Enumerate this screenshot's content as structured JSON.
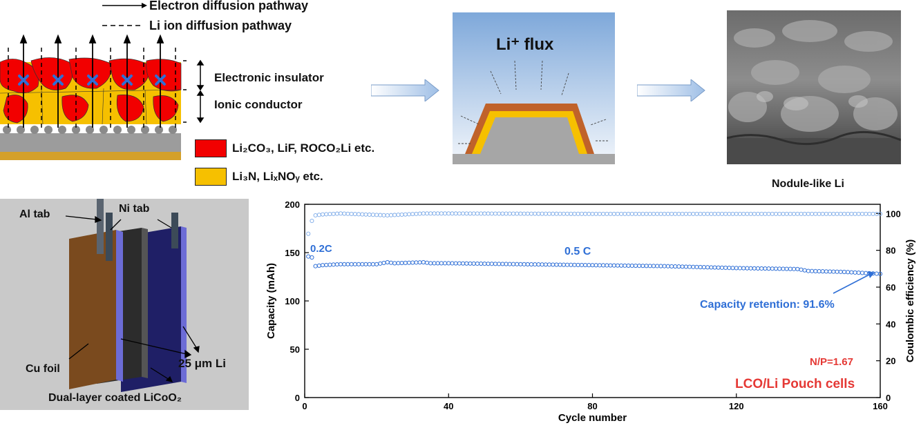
{
  "legend": {
    "electron_pathway": "Electron diffusion pathway",
    "li_ion_pathway": "Li ion diffusion pathway",
    "electronic_insulator": "Electronic insulator",
    "ionic_conductor": "Ionic conductor",
    "red_compounds": "Li₂CO₃, LiF, ROCO₂Li etc.",
    "yellow_compounds": "Li₃N, LiₓNOᵧ etc.",
    "red_color": "#f20000",
    "yellow_color": "#f6c000"
  },
  "flux_panel": {
    "label": "Li⁺ flux"
  },
  "sem_panel": {
    "caption": "Nodule-like Li"
  },
  "pouch_cell": {
    "al_tab": "Al tab",
    "ni_tab": "Ni tab",
    "cu_foil": "Cu foil",
    "li_thickness": "25 μm Li",
    "cathode": "Dual-layer coated LiCoO₂"
  },
  "chart_data": {
    "type": "scatter",
    "xlabel": "Cycle number",
    "ylabel_left": "Capacity (mAh)",
    "ylabel_right": "Coulombic efficiency (%)",
    "xlim": [
      0,
      160
    ],
    "ylim_left": [
      0,
      200
    ],
    "ylim_right": [
      0,
      105
    ],
    "xticks": [
      "0",
      "40",
      "80",
      "120",
      "160"
    ],
    "yticks_left": [
      "0",
      "50",
      "100",
      "150",
      "200"
    ],
    "yticks_right": [
      "0",
      "20",
      "40",
      "60",
      "80",
      "100"
    ],
    "annotations": {
      "rate_initial": "0.2C",
      "rate_main": "0.5 C",
      "retention": "Capacity retention: 91.6%",
      "np_ratio": "N/P=1.67",
      "cell_type": "LCO/Li Pouch cells"
    },
    "series": [
      {
        "axis": "left",
        "x": [
          1,
          2,
          3,
          5,
          10,
          20,
          23,
          25,
          33,
          35,
          40,
          60,
          80,
          100,
          120,
          137,
          140,
          150,
          160
        ],
        "values": [
          146,
          145,
          136,
          137,
          138,
          138,
          140,
          139,
          140,
          139,
          139,
          138,
          137,
          136,
          134,
          133,
          131,
          130,
          128
        ]
      },
      {
        "axis": "right",
        "x": [
          1,
          2,
          3,
          5,
          10,
          23,
          33,
          40,
          80,
          120,
          160
        ],
        "values": [
          89,
          96,
          99,
          99.5,
          100,
          99,
          100,
          100,
          99.8,
          99.8,
          99.8
        ]
      }
    ],
    "colors": {
      "capacity": "#2f6fd6",
      "efficiency": "#7aa9e8",
      "retention_text": "#2f6fd6",
      "red_text": "#e53935"
    },
    "grid": false
  }
}
